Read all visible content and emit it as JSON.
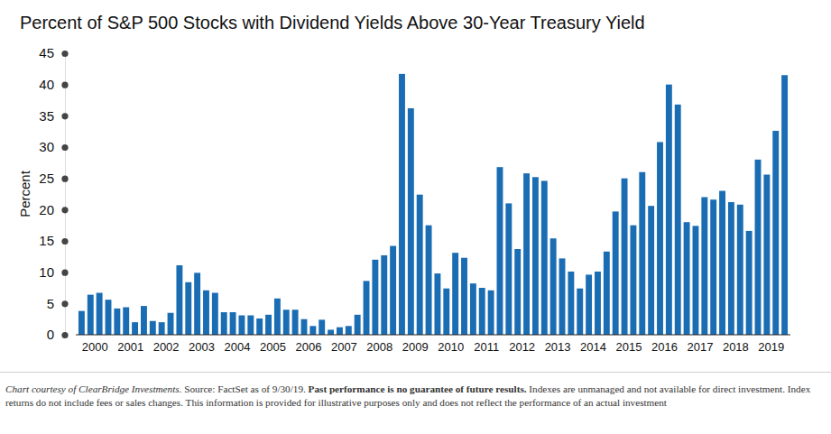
{
  "chart_data": {
    "type": "bar",
    "title": "Percent of S&P 500 Stocks with Dividend Yields Above 30-Year Treasury Yield",
    "y_label": "Percent",
    "categories": [
      null,
      "2000",
      null,
      null,
      null,
      "2001",
      null,
      null,
      null,
      "2002",
      null,
      null,
      null,
      "2003",
      null,
      null,
      null,
      "2004",
      null,
      null,
      null,
      "2005",
      null,
      null,
      null,
      "2006",
      null,
      null,
      null,
      "2007",
      null,
      null,
      null,
      "2008",
      null,
      null,
      null,
      "2009",
      null,
      null,
      null,
      "2010",
      null,
      null,
      null,
      "2011",
      null,
      null,
      null,
      "2012",
      null,
      null,
      null,
      "2013",
      null,
      null,
      null,
      "2014",
      null,
      null,
      null,
      "2015",
      null,
      null,
      null,
      "2016",
      null,
      null,
      null,
      "2017",
      null,
      null,
      null,
      "2018",
      null,
      null,
      null,
      "2019",
      null,
      null
    ],
    "values": [
      3.8,
      6.4,
      6.7,
      5.6,
      4.2,
      4.4,
      2.0,
      4.6,
      2.2,
      2.0,
      3.5,
      11.1,
      8.4,
      9.9,
      7.1,
      6.7,
      3.6,
      3.6,
      3.1,
      3.1,
      2.6,
      3.2,
      5.8,
      4.0,
      4.0,
      2.5,
      1.4,
      2.4,
      0.8,
      1.2,
      1.4,
      3.2,
      8.6,
      12.0,
      12.7,
      14.2,
      41.7,
      36.2,
      22.4,
      17.5,
      9.8,
      7.4,
      13.1,
      12.3,
      8.2,
      7.5,
      7.1,
      26.8,
      21.0,
      13.7,
      25.8,
      25.2,
      24.6,
      15.4,
      12.2,
      10.1,
      7.4,
      9.6,
      10.1,
      13.3,
      19.7,
      25.0,
      17.5,
      26.0,
      20.6,
      30.8,
      40.0,
      36.8,
      18.0,
      17.4,
      22.0,
      21.6,
      23.0,
      21.2,
      20.8,
      16.6,
      28.0,
      25.6,
      32.6,
      41.5
    ],
    "color": "#1b6db3",
    "ylim": [
      0,
      45
    ],
    "yticks": [
      0,
      5,
      10,
      15,
      20,
      25,
      30,
      35,
      40,
      45
    ],
    "grid": false
  },
  "footer": {
    "credit": "Chart courtesy of ClearBridge Investments.",
    "source": "Source: FactSet as of 9/30/19.",
    "disclaimer": "Past performance is no guarantee of future results.",
    "notes": "Indexes are unmanaged and not available for direct investment. Index returns do not include fees or sales changes. This information is provided for illustrative purposes only and does not reflect the performance of an actual investment"
  }
}
